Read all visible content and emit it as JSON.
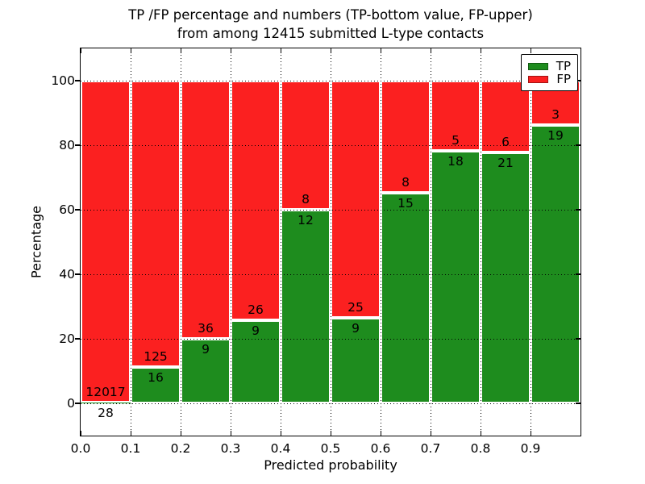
{
  "figure": {
    "title_line1": "TP /FP percentage and numbers (TP-bottom value, FP-upper)",
    "title_line2": "from among 12415 submitted L-type contacts"
  },
  "axes": {
    "xlabel": "Predicted probability",
    "ylabel": "Percentage",
    "x_tick_labels": [
      "0.0",
      "0.1",
      "0.2",
      "0.3",
      "0.4",
      "0.5",
      "0.6",
      "0.7",
      "0.8",
      "0.9"
    ],
    "x_tick_values": [
      0.0,
      0.1,
      0.2,
      0.3,
      0.4,
      0.5,
      0.6,
      0.7,
      0.8,
      0.9
    ],
    "y_tick_labels": [
      "0",
      "20",
      "40",
      "60",
      "80",
      "100"
    ],
    "y_tick_values": [
      0,
      20,
      40,
      60,
      80,
      100
    ],
    "xlim": [
      0.0,
      1.0
    ],
    "ylim": [
      -10,
      110
    ]
  },
  "legend": {
    "position": "upper right",
    "entries": [
      {
        "label": "TP",
        "color": "#1e8c1e"
      },
      {
        "label": "FP",
        "color": "#fb2020"
      }
    ]
  },
  "chart_data": {
    "type": "bar",
    "variant": "stacked-100-percent",
    "title": "TP /FP percentage and numbers (TP-bottom value, FP-upper) from among 12415 submitted L-type contacts",
    "xlabel": "Predicted probability",
    "ylabel": "Percentage",
    "total_submitted_contacts": 12415,
    "bin_edges": [
      0.0,
      0.1,
      0.2,
      0.3,
      0.4,
      0.5,
      0.6,
      0.7,
      0.8,
      0.9,
      1.0
    ],
    "series": [
      {
        "name": "TP",
        "color": "#1e8c1e",
        "counts": [
          28,
          16,
          9,
          9,
          12,
          9,
          15,
          18,
          21,
          19
        ]
      },
      {
        "name": "FP",
        "color": "#fb2020",
        "counts": [
          12017,
          125,
          36,
          26,
          8,
          25,
          8,
          5,
          6,
          3
        ]
      }
    ],
    "tp_percent_per_bin": [
      0.23,
      11.35,
      20.0,
      25.71,
      60.0,
      26.47,
      65.22,
      78.26,
      77.78,
      86.36
    ],
    "grid": "dotted",
    "legend_position": "upper right",
    "bar_edge_color": "#ffffff"
  },
  "colors": {
    "tp": "#1e8c1e",
    "fp": "#fb2020",
    "background": "#ffffff",
    "text": "#000000"
  }
}
